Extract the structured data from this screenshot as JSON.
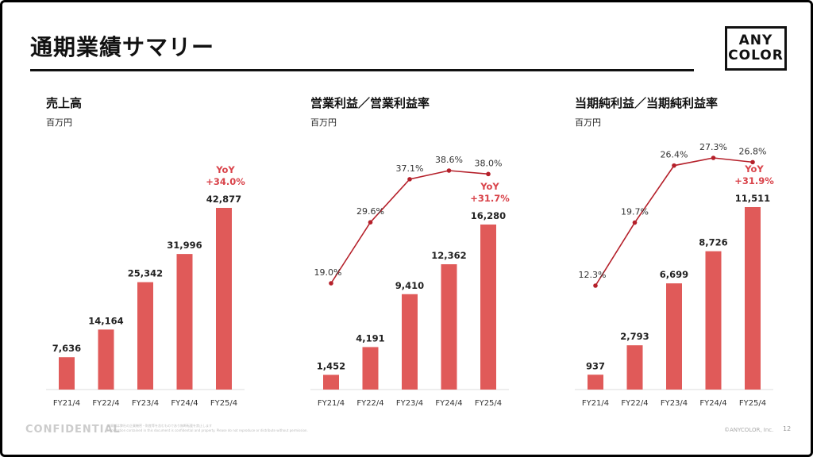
{
  "page": {
    "title": "通期業績サマリー",
    "logo_line1": "ANY",
    "logo_line2": "COLOR",
    "footer_confidential": "CONFIDENTIAL",
    "footer_note_line1": "本資料は弊社の企業機密・財産等を含むものであり無断転載を禁止します",
    "footer_note_line2": "Information contained in this document is confidential and property. Please do not reproduce or distribute without permission.",
    "footer_copyright": "©ANYCOLOR, Inc.",
    "page_number": "12"
  },
  "colors": {
    "bar": "#e05a59",
    "line": "#b5202a",
    "yoy": "#d9434a",
    "axis": "#dddddd"
  },
  "chart_data": [
    {
      "type": "bar",
      "title": "売上高",
      "unit": "百万円",
      "categories": [
        "FY21/4",
        "FY22/4",
        "FY23/4",
        "FY24/4",
        "FY25/4"
      ],
      "values": [
        7636,
        14164,
        25342,
        31996,
        42877
      ],
      "value_labels": [
        "7,636",
        "14,164",
        "25,342",
        "31,996",
        "42,877"
      ],
      "yoy_label": "YoY",
      "yoy_value": "+34.0%"
    },
    {
      "type": "bar",
      "title": "営業利益／営業利益率",
      "unit": "百万円",
      "categories": [
        "FY21/4",
        "FY22/4",
        "FY23/4",
        "FY24/4",
        "FY25/4"
      ],
      "values": [
        1452,
        4191,
        9410,
        12362,
        16280
      ],
      "value_labels": [
        "1,452",
        "4,191",
        "9,410",
        "12,362",
        "16,280"
      ],
      "rate_values": [
        19.0,
        29.6,
        37.1,
        38.6,
        38.0
      ],
      "rate_labels": [
        "19.0%",
        "29.6%",
        "37.1%",
        "38.6%",
        "38.0%"
      ],
      "yoy_label": "YoY",
      "yoy_value": "+31.7%"
    },
    {
      "type": "bar",
      "title": "当期純利益／当期純利益率",
      "unit": "百万円",
      "categories": [
        "FY21/4",
        "FY22/4",
        "FY23/4",
        "FY24/4",
        "FY25/4"
      ],
      "values": [
        937,
        2793,
        6699,
        8726,
        11511
      ],
      "value_labels": [
        "937",
        "2,793",
        "6,699",
        "8,726",
        "11,511"
      ],
      "rate_values": [
        12.3,
        19.7,
        26.4,
        27.3,
        26.8
      ],
      "rate_labels": [
        "12.3%",
        "19.7%",
        "26.4%",
        "27.3%",
        "26.8%"
      ],
      "yoy_label": "YoY",
      "yoy_value": "+31.9%"
    }
  ]
}
